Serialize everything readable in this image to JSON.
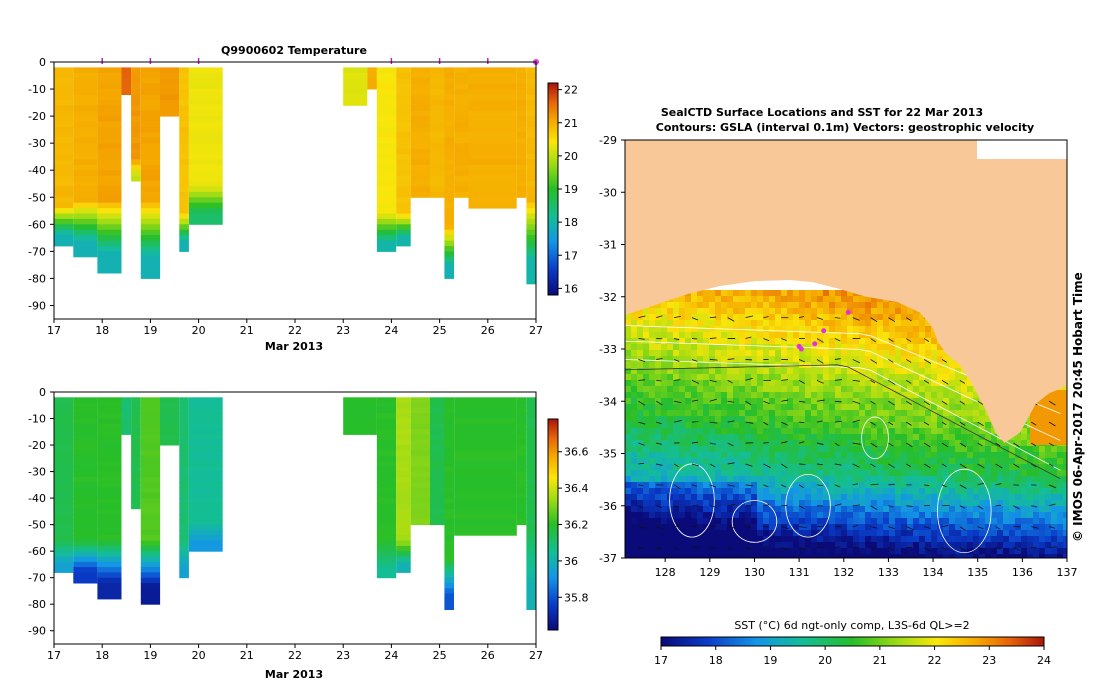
{
  "chart_data": [
    {
      "type": "heatmap",
      "id": "temperature-section",
      "title": "Q9900602  Temperature",
      "xlabel": "Mar 2013",
      "x_ticks": [
        "17",
        "18",
        "19",
        "20",
        "21",
        "22",
        "23",
        "24",
        "25",
        "26",
        "27"
      ],
      "xlim": [
        17,
        27
      ],
      "ylim": [
        -95,
        0
      ],
      "y_ticks": [
        "0",
        "-10",
        "-20",
        "-30",
        "-40",
        "-50",
        "-60",
        "-70",
        "-80",
        "-90"
      ],
      "profile_markers": [
        18,
        19,
        20,
        24,
        25,
        26,
        27
      ],
      "colorbar": {
        "min": 15.8,
        "max": 22.2,
        "ticks": [
          "16",
          "17",
          "18",
          "19",
          "20",
          "21",
          "22"
        ],
        "tick_values": [
          16,
          17,
          18,
          19,
          20,
          21,
          22
        ]
      },
      "profiles": [
        {
          "x0": 17.0,
          "x1": 17.4,
          "depth": 67,
          "surface": 20.9,
          "mixed_depth": 52,
          "bottom": 17.9
        },
        {
          "x0": 17.4,
          "x1": 17.9,
          "depth": 71,
          "surface": 21.0,
          "mixed_depth": 50,
          "bottom": 17.9
        },
        {
          "x0": 17.9,
          "x1": 18.4,
          "depth": 77,
          "surface": 21.1,
          "mixed_depth": 50,
          "bottom": 17.9
        },
        {
          "x0": 18.4,
          "x1": 18.6,
          "depth": 12,
          "surface": 21.6,
          "mixed_depth": 12,
          "bottom": 21.6
        },
        {
          "x0": 18.6,
          "x1": 18.8,
          "depth": 43,
          "surface": 21.2,
          "mixed_depth": 35,
          "bottom": 20.0
        },
        {
          "x0": 18.8,
          "x1": 19.2,
          "depth": 79,
          "surface": 21.1,
          "mixed_depth": 50,
          "bottom": 17.9
        },
        {
          "x0": 19.2,
          "x1": 19.6,
          "depth": 19,
          "surface": 21.2,
          "mixed_depth": 19,
          "bottom": 21.2
        },
        {
          "x0": 19.6,
          "x1": 19.8,
          "depth": 69,
          "surface": 20.8,
          "mixed_depth": 55,
          "bottom": 17.9
        },
        {
          "x0": 19.8,
          "x1": 20.5,
          "depth": 59,
          "surface": 20.3,
          "mixed_depth": 45,
          "bottom": 18.5
        },
        {
          "x0": 23.0,
          "x1": 23.5,
          "depth": 15,
          "surface": 20.2,
          "mixed_depth": 15,
          "bottom": 20.2
        },
        {
          "x0": 23.5,
          "x1": 23.7,
          "depth": 10,
          "surface": 21.0,
          "mixed_depth": 10,
          "bottom": 21.0
        },
        {
          "x0": 23.7,
          "x1": 24.1,
          "depth": 70,
          "surface": 20.4,
          "mixed_depth": 55,
          "bottom": 18.0
        },
        {
          "x0": 24.1,
          "x1": 24.4,
          "depth": 67,
          "surface": 20.8,
          "mixed_depth": 55,
          "bottom": 18.0
        },
        {
          "x0": 24.4,
          "x1": 24.8,
          "depth": 50,
          "surface": 21.0,
          "mixed_depth": 48,
          "bottom": 20.5
        },
        {
          "x0": 24.8,
          "x1": 25.1,
          "depth": 50,
          "surface": 20.9,
          "mixed_depth": 48,
          "bottom": 20.5
        },
        {
          "x0": 25.1,
          "x1": 25.3,
          "depth": 80,
          "surface": 21.0,
          "mixed_depth": 60,
          "bottom": 17.9
        },
        {
          "x0": 25.3,
          "x1": 25.6,
          "depth": 50,
          "surface": 21.0,
          "mixed_depth": 48,
          "bottom": 20.8
        },
        {
          "x0": 25.6,
          "x1": 26.6,
          "depth": 53,
          "surface": 21.0,
          "mixed_depth": 52,
          "bottom": 21.0
        },
        {
          "x0": 26.6,
          "x1": 26.8,
          "depth": 50,
          "surface": 21.0,
          "mixed_depth": 50,
          "bottom": 21.0
        },
        {
          "x0": 26.8,
          "x1": 27.0,
          "depth": 81,
          "surface": 20.9,
          "mixed_depth": 50,
          "bottom": 18.0
        }
      ]
    },
    {
      "type": "heatmap",
      "id": "salinity-section",
      "title": "",
      "xlabel": "Mar 2013",
      "x_ticks": [
        "17",
        "18",
        "19",
        "20",
        "21",
        "22",
        "23",
        "24",
        "25",
        "26",
        "27"
      ],
      "xlim": [
        17,
        27
      ],
      "ylim": [
        -95,
        0
      ],
      "y_ticks": [
        "0",
        "-10",
        "-20",
        "-30",
        "-40",
        "-50",
        "-60",
        "-70",
        "-80",
        "-90"
      ],
      "colorbar": {
        "min": 35.62,
        "max": 36.78,
        "ticks": [
          "35.8",
          "36",
          "36.2",
          "36.4",
          "36.6"
        ],
        "tick_values": [
          35.8,
          36.0,
          36.2,
          36.4,
          36.6
        ]
      },
      "profiles": [
        {
          "x0": 17.0,
          "x1": 17.4,
          "depth": 67,
          "surface": 36.15,
          "mixed_depth": 55,
          "bottom": 35.95
        },
        {
          "x0": 17.4,
          "x1": 17.9,
          "depth": 71,
          "surface": 36.2,
          "mixed_depth": 55,
          "bottom": 35.75
        },
        {
          "x0": 17.9,
          "x1": 18.4,
          "depth": 77,
          "surface": 36.2,
          "mixed_depth": 55,
          "bottom": 35.7
        },
        {
          "x0": 18.4,
          "x1": 18.6,
          "depth": 15,
          "surface": 36.1,
          "mixed_depth": 15,
          "bottom": 36.1
        },
        {
          "x0": 18.6,
          "x1": 18.8,
          "depth": 43,
          "surface": 36.15,
          "mixed_depth": 43,
          "bottom": 36.15
        },
        {
          "x0": 18.8,
          "x1": 19.2,
          "depth": 79,
          "surface": 36.25,
          "mixed_depth": 55,
          "bottom": 35.67
        },
        {
          "x0": 19.2,
          "x1": 19.6,
          "depth": 19,
          "surface": 36.15,
          "mixed_depth": 19,
          "bottom": 36.15
        },
        {
          "x0": 19.6,
          "x1": 19.8,
          "depth": 69,
          "surface": 36.1,
          "mixed_depth": 55,
          "bottom": 35.95
        },
        {
          "x0": 19.8,
          "x1": 20.5,
          "depth": 59,
          "surface": 36.05,
          "mixed_depth": 48,
          "bottom": 35.92
        },
        {
          "x0": 23.0,
          "x1": 23.7,
          "depth": 15,
          "surface": 36.2,
          "mixed_depth": 15,
          "bottom": 36.2
        },
        {
          "x0": 23.7,
          "x1": 24.1,
          "depth": 70,
          "surface": 36.2,
          "mixed_depth": 55,
          "bottom": 36.05
        },
        {
          "x0": 24.1,
          "x1": 24.4,
          "depth": 67,
          "surface": 36.35,
          "mixed_depth": 55,
          "bottom": 36.0
        },
        {
          "x0": 24.4,
          "x1": 24.8,
          "depth": 50,
          "surface": 36.3,
          "mixed_depth": 50,
          "bottom": 36.3
        },
        {
          "x0": 24.8,
          "x1": 25.1,
          "depth": 50,
          "surface": 36.15,
          "mixed_depth": 50,
          "bottom": 36.15
        },
        {
          "x0": 25.1,
          "x1": 25.3,
          "depth": 81,
          "surface": 36.2,
          "mixed_depth": 62,
          "bottom": 35.8
        },
        {
          "x0": 25.3,
          "x1": 26.6,
          "depth": 53,
          "surface": 36.2,
          "mixed_depth": 53,
          "bottom": 36.2
        },
        {
          "x0": 26.6,
          "x1": 26.8,
          "depth": 50,
          "surface": 36.2,
          "mixed_depth": 50,
          "bottom": 36.2
        },
        {
          "x0": 26.8,
          "x1": 27.0,
          "depth": 81,
          "surface": 36.15,
          "mixed_depth": 50,
          "bottom": 36.0
        }
      ]
    },
    {
      "type": "heatmap",
      "id": "sst-map",
      "title": "SealCTD Surface Locations and SST for 22 Mar 2013",
      "subtitle": "Contours: GSLA (interval 0.1m) Vectors: geostrophic velocity",
      "xlim": [
        127.1,
        137.0
      ],
      "ylim": [
        -37.0,
        -29.0
      ],
      "x_ticks": [
        "128",
        "129",
        "130",
        "131",
        "132",
        "133",
        "134",
        "135",
        "136",
        "137"
      ],
      "x_tick_values": [
        128,
        129,
        130,
        131,
        132,
        133,
        134,
        135,
        136,
        137
      ],
      "y_ticks": [
        "-29",
        "-30",
        "-31",
        "-32",
        "-33",
        "-34",
        "-35",
        "-36",
        "-37"
      ],
      "y_tick_values": [
        -29,
        -30,
        -31,
        -32,
        -33,
        -34,
        -35,
        -36,
        -37
      ],
      "credit": "© IMOS 06-Apr-2017 20:45 Hobart Time",
      "colorbar_label": "SST (°C) 6d ngt-only comp, L3S-6d QL>=2",
      "colorbar": {
        "min": 17,
        "max": 24,
        "ticks": [
          "17",
          "18",
          "19",
          "20",
          "21",
          "22",
          "23",
          "24"
        ],
        "tick_values": [
          17,
          18,
          19,
          20,
          21,
          22,
          23,
          24
        ]
      },
      "land_color": "#f9c899",
      "coastline": [
        [
          127.1,
          -32.35
        ],
        [
          127.8,
          -32.15
        ],
        [
          128.5,
          -31.95
        ],
        [
          129.2,
          -31.8
        ],
        [
          130.0,
          -31.7
        ],
        [
          130.8,
          -31.68
        ],
        [
          131.3,
          -31.72
        ],
        [
          131.9,
          -31.85
        ],
        [
          132.5,
          -32.0
        ],
        [
          133.2,
          -32.1
        ],
        [
          133.7,
          -32.3
        ],
        [
          134.0,
          -32.6
        ],
        [
          134.1,
          -32.85
        ],
        [
          134.3,
          -33.1
        ],
        [
          134.6,
          -33.3
        ],
        [
          134.9,
          -33.7
        ],
        [
          135.2,
          -34.2
        ],
        [
          135.4,
          -34.6
        ],
        [
          135.6,
          -34.8
        ],
        [
          135.95,
          -34.6
        ],
        [
          136.3,
          -34.05
        ],
        [
          136.6,
          -33.85
        ],
        [
          137.0,
          -33.7
        ]
      ],
      "seal_locations": [
        [
          131.0,
          -32.95
        ],
        [
          131.05,
          -33.0
        ],
        [
          131.35,
          -32.9
        ],
        [
          131.55,
          -32.65
        ],
        [
          132.1,
          -32.3
        ]
      ]
    }
  ]
}
